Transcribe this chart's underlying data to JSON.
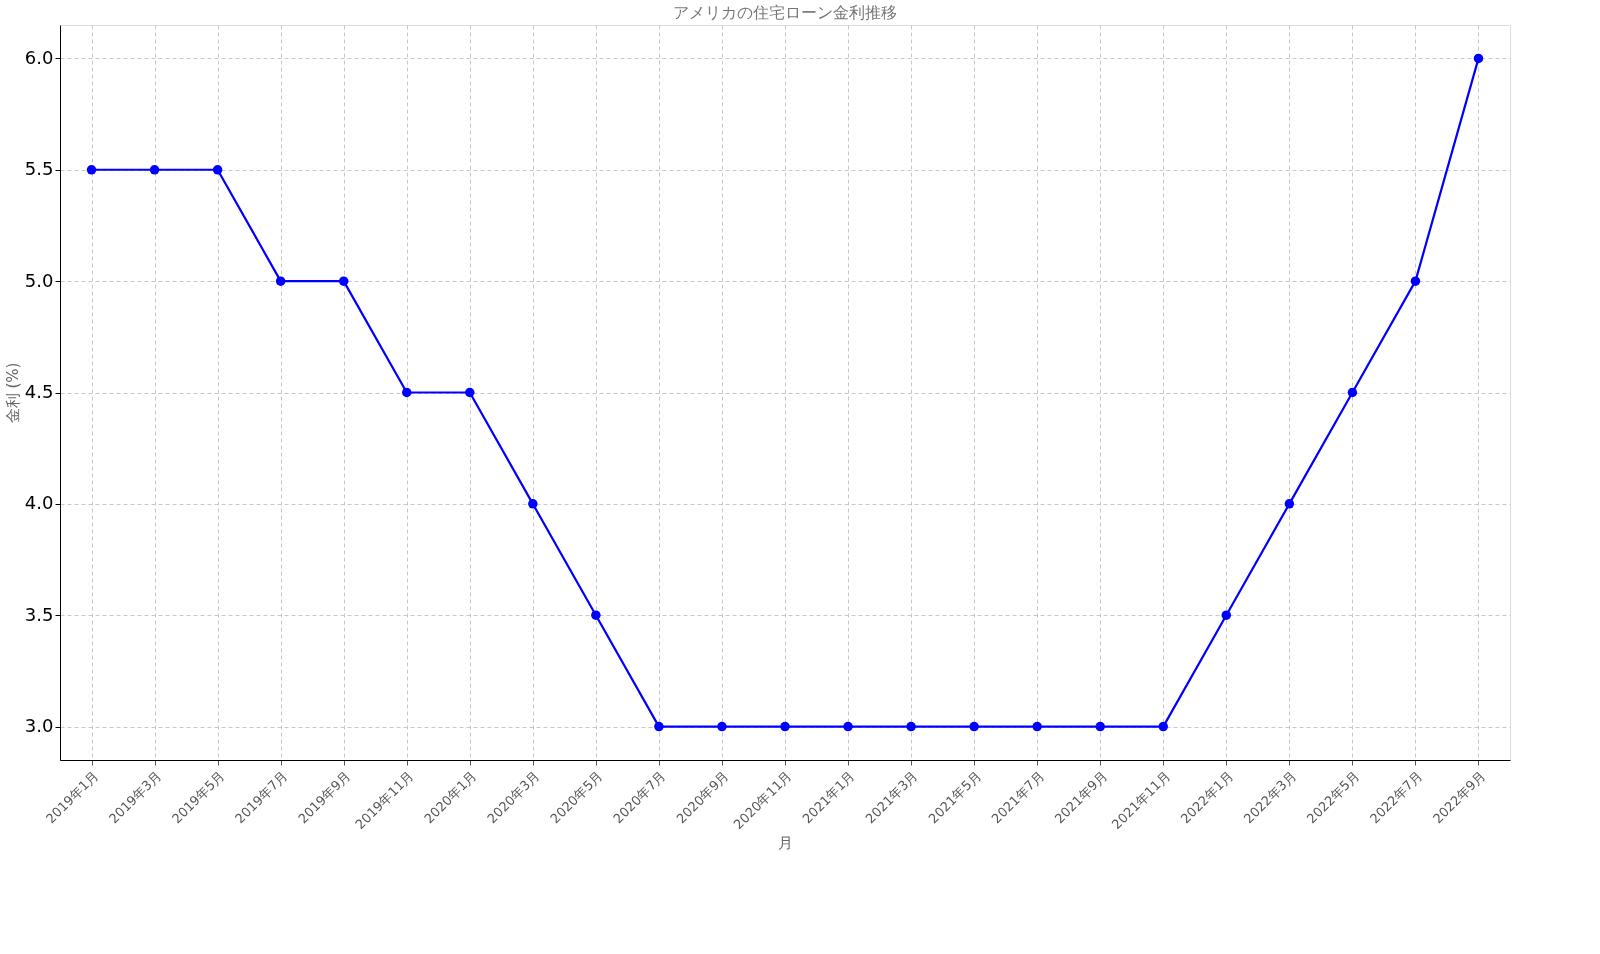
{
  "chart_data": {
    "type": "line",
    "title": "アメリカの住宅ローン金利推移",
    "xlabel": "月",
    "ylabel": "金利 (%)",
    "categories": [
      "2019年1月",
      "2019年3月",
      "2019年5月",
      "2019年7月",
      "2019年9月",
      "2019年11月",
      "2020年1月",
      "2020年3月",
      "2020年5月",
      "2020年7月",
      "2020年9月",
      "2020年11月",
      "2021年1月",
      "2021年3月",
      "2021年5月",
      "2021年7月",
      "2021年9月",
      "2021年11月",
      "2022年1月",
      "2022年3月",
      "2022年5月",
      "2022年7月",
      "2022年9月"
    ],
    "series": [
      {
        "color": "#0000ff",
        "values": [
          5.5,
          5.5,
          5.5,
          5.0,
          5.0,
          4.5,
          4.5,
          4.0,
          3.5,
          3.0,
          3.0,
          3.0,
          3.0,
          3.0,
          3.0,
          3.0,
          3.0,
          3.0,
          3.5,
          4.0,
          4.5,
          5.0,
          6.0
        ]
      }
    ],
    "ylim": [
      2.85,
      6.15
    ],
    "yticks": [
      {
        "value": 3.0,
        "label": "3.0"
      },
      {
        "value": 3.5,
        "label": "3.5"
      },
      {
        "value": 4.0,
        "label": "4.0"
      },
      {
        "value": 4.5,
        "label": "4.5"
      },
      {
        "value": 5.0,
        "label": "5.0"
      },
      {
        "value": 5.5,
        "label": "5.5"
      },
      {
        "value": 6.0,
        "label": "6.0"
      }
    ],
    "grid": true,
    "marker": "circle",
    "line_style": "solid",
    "legend": false
  }
}
